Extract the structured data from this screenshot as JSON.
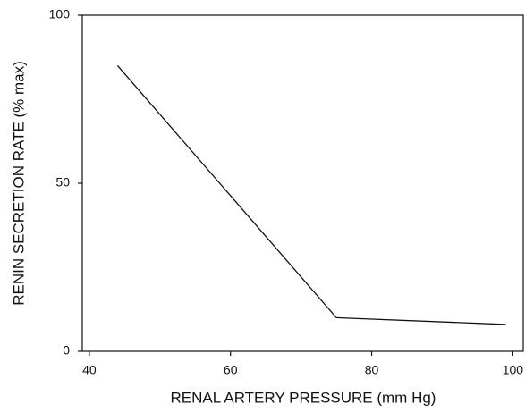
{
  "chart_data": {
    "type": "line",
    "xlabel": "RENAL ARTERY PRESSURE (mm Hg)",
    "ylabel": "RENIN SECRETION RATE (% max)",
    "x": [
      44,
      75,
      99
    ],
    "series": [
      {
        "color": "#111111",
        "values": [
          85,
          10,
          8
        ]
      }
    ],
    "xlim": [
      39,
      101.6
    ],
    "xticks": [
      40,
      60,
      80,
      100
    ],
    "ylim": [
      0,
      100
    ],
    "yticks": [
      0,
      50,
      100
    ],
    "grid": false
  }
}
